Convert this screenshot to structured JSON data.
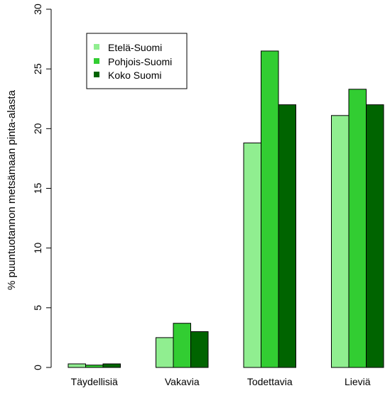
{
  "chart_data": {
    "type": "bar",
    "title": "",
    "xlabel": "",
    "ylabel": "% puuntuotannon metsämaan pinta-alasta",
    "ylim": [
      0,
      30
    ],
    "yticks": [
      0,
      5,
      10,
      15,
      20,
      25,
      30
    ],
    "categories": [
      "Täydellisiä",
      "Vakavia",
      "Todettavia",
      "Lieviä"
    ],
    "series": [
      {
        "name": "Etelä-Suomi",
        "color": "#90ee90",
        "values": [
          0.3,
          2.5,
          18.8,
          21.1
        ]
      },
      {
        "name": "Pohjois-Suomi",
        "color": "#32cd32",
        "values": [
          0.2,
          3.7,
          26.5,
          23.3
        ]
      },
      {
        "name": "Koko Suomi",
        "color": "#006400",
        "values": [
          0.3,
          3.0,
          22.0,
          22.0
        ]
      }
    ],
    "legend_position": "top-left",
    "grid": false
  }
}
